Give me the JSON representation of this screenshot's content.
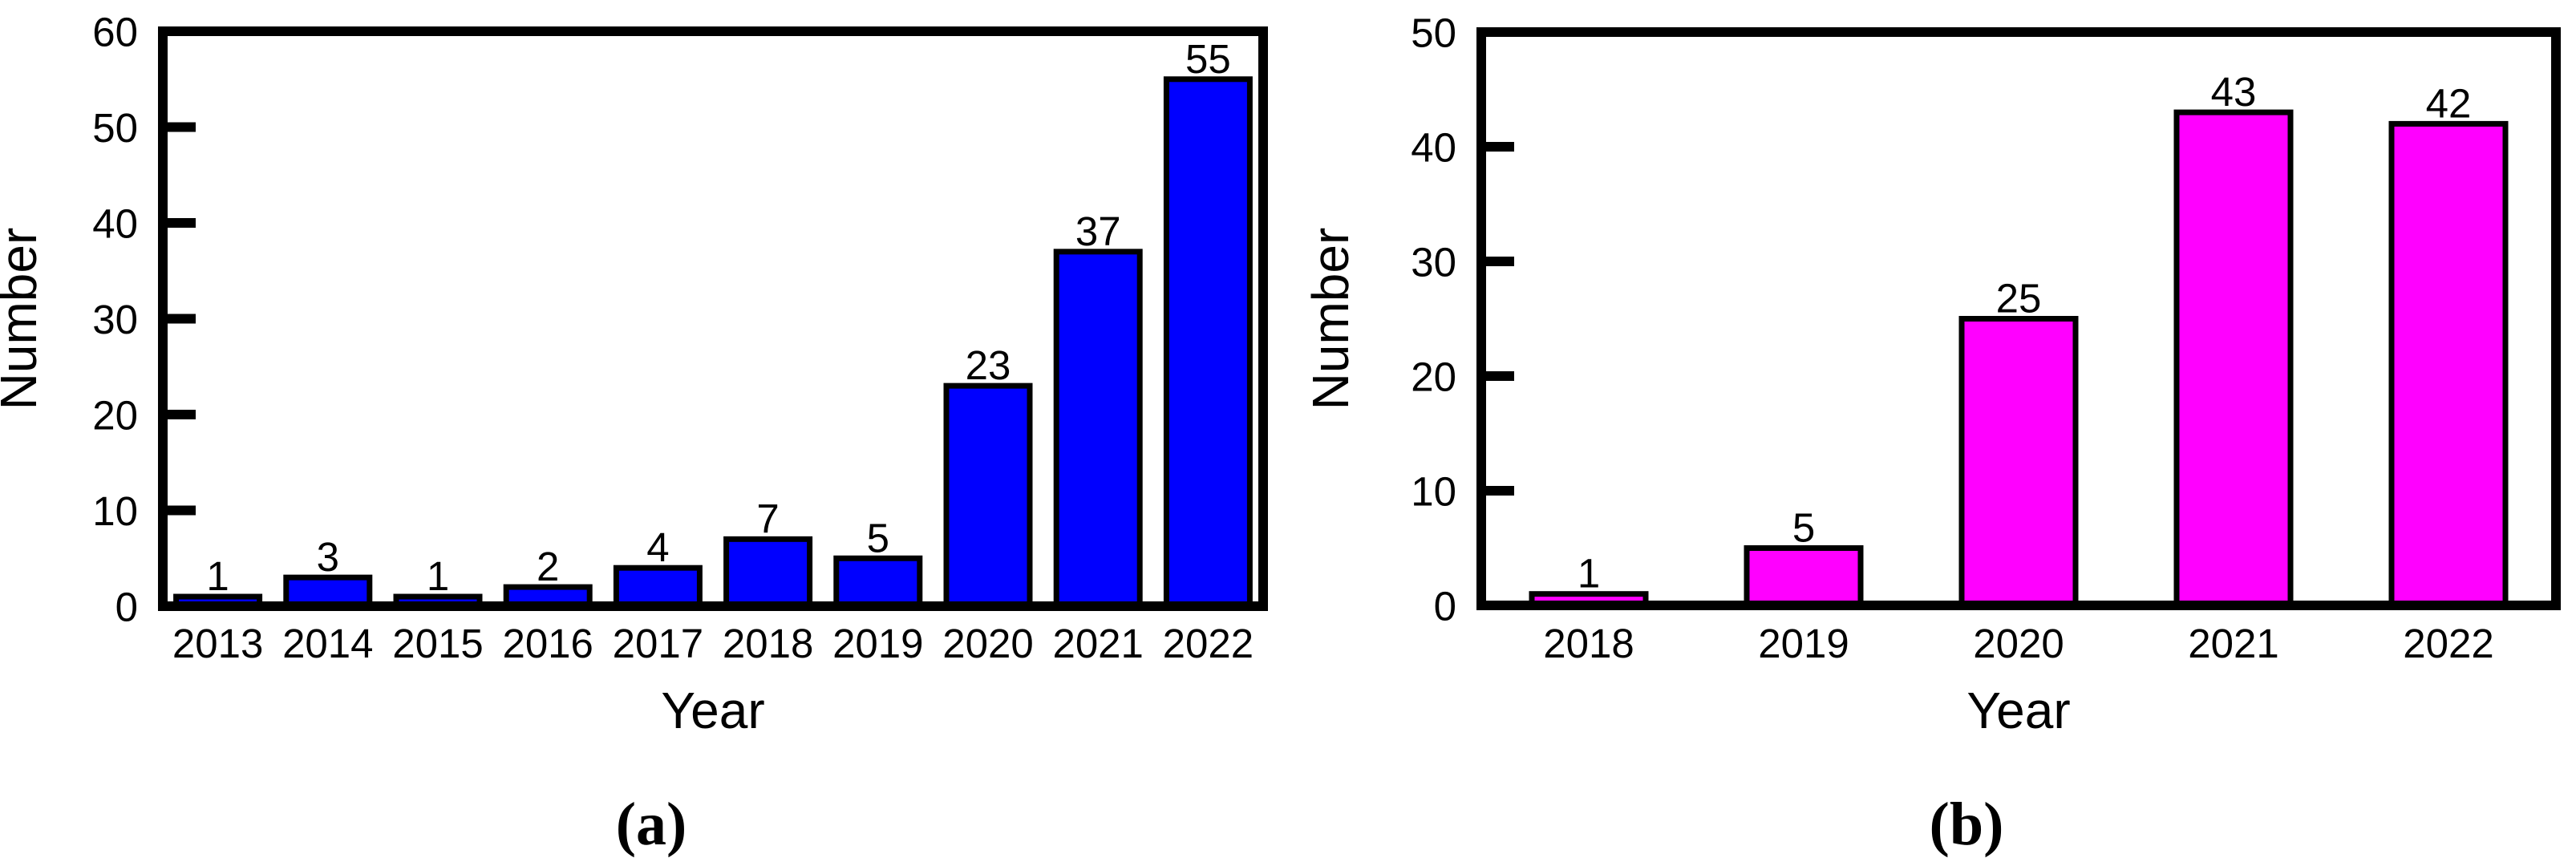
{
  "figure": {
    "background": "#FFFFFF",
    "text_color": "#000000"
  },
  "chart_data": [
    {
      "panel": "a",
      "type": "bar",
      "title": "",
      "categories": [
        "2013",
        "2014",
        "2015",
        "2016",
        "2017",
        "2018",
        "2019",
        "2020",
        "2021",
        "2022"
      ],
      "values": [
        1,
        3,
        1,
        2,
        4,
        7,
        5,
        23,
        37,
        55
      ],
      "xlabel": "Year",
      "ylabel": "Number",
      "ylim": [
        0,
        60
      ],
      "yticks": [
        0,
        10,
        20,
        30,
        40,
        50,
        60
      ],
      "bar_color": "#0000FF",
      "bar_edge_color": "#000000",
      "axis_color": "#000000",
      "grid": false,
      "legend": null,
      "value_labels_shown": true,
      "caption": "(a)"
    },
    {
      "panel": "b",
      "type": "bar",
      "title": "",
      "categories": [
        "2018",
        "2019",
        "2020",
        "2021",
        "2022"
      ],
      "values": [
        1,
        5,
        25,
        43,
        42
      ],
      "xlabel": "Year",
      "ylabel": "Number",
      "ylim": [
        0,
        50
      ],
      "yticks": [
        0,
        10,
        20,
        30,
        40,
        50
      ],
      "bar_color": "#FF00FF",
      "bar_edge_color": "#000000",
      "axis_color": "#000000",
      "grid": false,
      "legend": null,
      "value_labels_shown": true,
      "caption": "(b)"
    }
  ]
}
